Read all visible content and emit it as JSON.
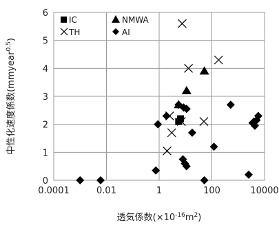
{
  "chart_data": {
    "type": "scatter",
    "title": "",
    "xlabel": {
      "main": "透気係数(×10",
      "sup": "-16",
      "mid": "m",
      "sup2": "2",
      "end": ")"
    },
    "ylabel": {
      "main": "中性化速度係数(mmyear",
      "sup": "0.5",
      "end": ")"
    },
    "x_scale": "log",
    "xlim": [
      0.0001,
      10000
    ],
    "ylim": [
      0,
      6
    ],
    "x_ticks": [
      0.0001,
      0.01,
      1,
      100,
      10000
    ],
    "x_tick_labels": [
      "0.0001",
      "0.01",
      "1",
      "100",
      "10000"
    ],
    "y_ticks": [
      0,
      1,
      2,
      3,
      4,
      5,
      6
    ],
    "y_tick_labels": [
      "0",
      "1",
      "2",
      "3",
      "4",
      "5",
      "6"
    ],
    "grid": true,
    "legend_position": "top-left",
    "series": [
      {
        "name": "IC",
        "marker": "square",
        "color": "#000000",
        "points": [
          [
            6.5,
            2.2
          ],
          [
            5.5,
            2.1
          ]
        ]
      },
      {
        "name": "NMWA",
        "marker": "triangle",
        "color": "#000000",
        "points": [
          [
            52,
            3.9
          ],
          [
            11,
            3.2
          ],
          [
            5.5,
            2.7
          ]
        ]
      },
      {
        "name": "TH",
        "marker": "x",
        "color": "#000000",
        "points": [
          [
            7.5,
            5.6
          ],
          [
            180,
            4.3
          ],
          [
            13,
            4.0
          ],
          [
            2.5,
            2.3
          ],
          [
            50,
            2.1
          ],
          [
            7,
            2.1
          ],
          [
            3,
            1.7
          ],
          [
            2.0,
            1.05
          ]
        ]
      },
      {
        "name": "AI",
        "marker": "diamond",
        "color": "#000000",
        "points": [
          [
            0.001,
            0.0
          ],
          [
            0.006,
            0.0
          ],
          [
            0.75,
            0.35
          ],
          [
            0.9,
            2.0
          ],
          [
            1.9,
            2.3
          ],
          [
            5.5,
            2.7
          ],
          [
            8.5,
            2.6
          ],
          [
            11,
            2.55
          ],
          [
            18,
            1.7
          ],
          [
            8,
            0.75
          ],
          [
            9.5,
            0.6
          ],
          [
            11,
            0.5
          ],
          [
            52,
            0.0
          ],
          [
            120,
            1.2
          ],
          [
            520,
            2.7
          ],
          [
            2500,
            0.2
          ],
          [
            3500,
            2.05
          ],
          [
            4000,
            2.1
          ],
          [
            4300,
            1.95
          ],
          [
            5000,
            2.15
          ],
          [
            5800,
            2.3
          ]
        ]
      }
    ]
  }
}
